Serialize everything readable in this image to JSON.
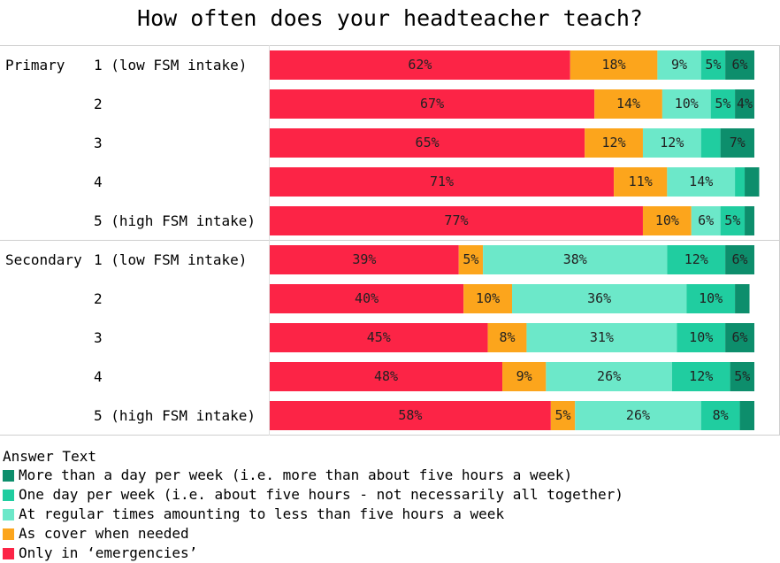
{
  "chart_data": {
    "type": "bar",
    "orientation": "horizontal",
    "stacked": "percent",
    "title": "How often does your headteacher teach?",
    "xlim": [
      0,
      100
    ],
    "groups": [
      {
        "label": "Primary",
        "categories": [
          "1 (low FSM intake)",
          "2",
          "3",
          "4",
          "5 (high FSM intake)"
        ],
        "series": [
          {
            "name": "Only in ‘emergencies’",
            "values": [
              62,
              67,
              65,
              71,
              77
            ]
          },
          {
            "name": "As cover when needed",
            "values": [
              18,
              14,
              12,
              11,
              10
            ]
          },
          {
            "name": "At regular times amounting to less than five hours a week",
            "values": [
              9,
              10,
              12,
              14,
              6
            ]
          },
          {
            "name": "One day per week (i.e. about five hours - not necessarily all together)",
            "values": [
              5,
              5,
              4,
              2,
              5
            ]
          },
          {
            "name": "More than a day per week (i.e. more than about five hours a week)",
            "values": [
              6,
              4,
              7,
              3,
              2
            ]
          }
        ],
        "labels": [
          [
            "62%",
            "18%",
            "9%",
            "5%",
            "6%"
          ],
          [
            "67%",
            "14%",
            "10%",
            "5%",
            "4%"
          ],
          [
            "65%",
            "12%",
            "12%",
            "",
            "7%"
          ],
          [
            "71%",
            "11%",
            "14%",
            "",
            ""
          ],
          [
            "77%",
            "10%",
            "6%",
            "5%",
            ""
          ]
        ]
      },
      {
        "label": "Secondary",
        "categories": [
          "1 (low FSM intake)",
          "2",
          "3",
          "4",
          "5 (high FSM intake)"
        ],
        "series": [
          {
            "name": "Only in ‘emergencies’",
            "values": [
              39,
              40,
              45,
              48,
              58
            ]
          },
          {
            "name": "As cover when needed",
            "values": [
              5,
              10,
              8,
              9,
              5
            ]
          },
          {
            "name": "At regular times amounting to less than five hours a week",
            "values": [
              38,
              36,
              31,
              26,
              26
            ]
          },
          {
            "name": "One day per week (i.e. about five hours - not necessarily all together)",
            "values": [
              12,
              10,
              10,
              12,
              8
            ]
          },
          {
            "name": "More than a day per week (i.e. more than about five hours a week)",
            "values": [
              6,
              3,
              6,
              5,
              3
            ]
          }
        ],
        "labels": [
          [
            "39%",
            "5%",
            "38%",
            "12%",
            "6%"
          ],
          [
            "40%",
            "10%",
            "36%",
            "10%",
            ""
          ],
          [
            "45%",
            "8%",
            "31%",
            "10%",
            "6%"
          ],
          [
            "48%",
            "9%",
            "26%",
            "12%",
            "5%"
          ],
          [
            "58%",
            "5%",
            "26%",
            "8%",
            ""
          ]
        ]
      }
    ],
    "colors": [
      "#fc2446",
      "#fca51c",
      "#6ce8c9",
      "#20cda0",
      "#0d8e6c"
    ],
    "legend": {
      "title": "Answer Text",
      "position": "bottom-left",
      "items": [
        {
          "name": "More than a day per week (i.e. more than about five hours a week)",
          "color": "#0d8e6c"
        },
        {
          "name": "One day per week (i.e. about five hours - not necessarily all together)",
          "color": "#20cda0"
        },
        {
          "name": "At regular times amounting to less than five hours a week",
          "color": "#6ce8c9"
        },
        {
          "name": "As cover when needed",
          "color": "#fca51c"
        },
        {
          "name": "Only in ‘emergencies’",
          "color": "#fc2446"
        }
      ]
    }
  }
}
